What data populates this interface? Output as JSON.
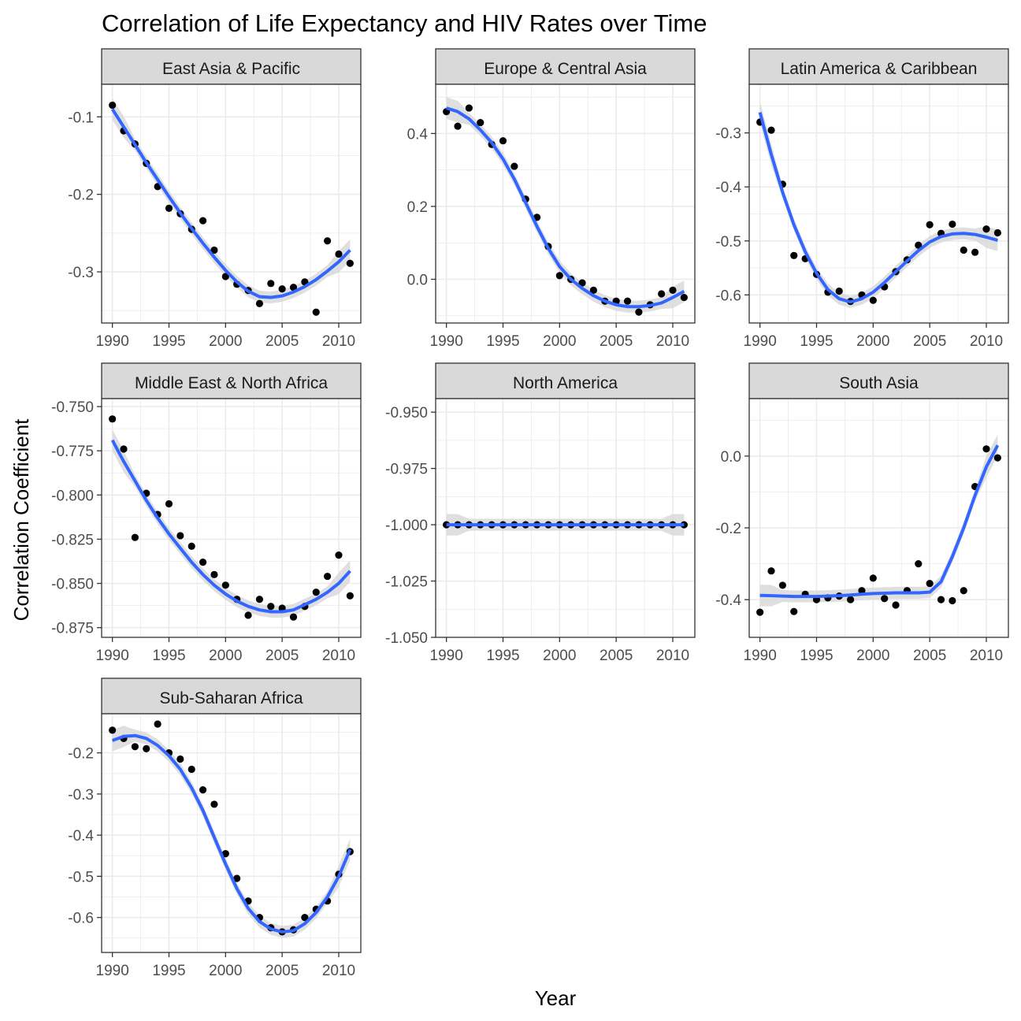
{
  "chart_data": {
    "type": "scatter",
    "title": "Correlation of Life Expectancy and HIV Rates over Time",
    "xlabel": "Year",
    "ylabel": "Correlation Coefficient",
    "x": [
      1990,
      1991,
      1992,
      1993,
      1994,
      1995,
      1996,
      1997,
      1998,
      1999,
      2000,
      2001,
      2002,
      2003,
      2004,
      2005,
      2006,
      2007,
      2008,
      2009,
      2010,
      2011
    ],
    "xlim": [
      1989.05,
      2011.95
    ],
    "xticks": [
      "1990",
      "1995",
      "2000",
      "2005",
      "2010"
    ],
    "grid": true,
    "colors": {
      "points": "#000000",
      "smooth": "#3366ff",
      "ribbon": "#d9d9d9",
      "strip_fill": "#d9d9d9",
      "panel_border": "#333333",
      "grid": "#ebebeb"
    },
    "panels": [
      {
        "name": "East Asia & Pacific",
        "ylim": [
          -0.366,
          -0.058
        ],
        "yticks": [
          -0.1,
          -0.2,
          -0.3
        ],
        "ytick_labels": [
          "-0.1",
          "-0.2",
          "-0.3"
        ],
        "values": [
          -0.085,
          -0.118,
          -0.135,
          -0.16,
          -0.19,
          -0.218,
          -0.225,
          -0.245,
          -0.234,
          -0.272,
          -0.306,
          -0.316,
          -0.324,
          -0.341,
          -0.315,
          -0.322,
          -0.32,
          -0.313,
          -0.352,
          -0.26,
          -0.277,
          -0.289
        ],
        "smooth": [
          -0.09,
          -0.113,
          -0.136,
          -0.159,
          -0.181,
          -0.203,
          -0.224,
          -0.244,
          -0.263,
          -0.281,
          -0.298,
          -0.313,
          -0.325,
          -0.332,
          -0.333,
          -0.331,
          -0.326,
          -0.319,
          -0.31,
          -0.299,
          -0.287,
          -0.272
        ]
      },
      {
        "name": "Europe & Central Asia",
        "ylim": [
          -0.12,
          0.535
        ],
        "yticks": [
          0.4,
          0.2,
          0.0
        ],
        "ytick_labels": [
          "0.4",
          "0.2",
          "0.0"
        ],
        "values": [
          0.46,
          0.42,
          0.47,
          0.43,
          0.37,
          0.38,
          0.31,
          0.22,
          0.17,
          0.09,
          0.01,
          0.0,
          -0.01,
          -0.03,
          -0.06,
          -0.06,
          -0.06,
          -0.09,
          -0.07,
          -0.04,
          -0.03,
          -0.05
        ],
        "smooth": [
          0.47,
          0.46,
          0.44,
          0.41,
          0.375,
          0.33,
          0.275,
          0.21,
          0.145,
          0.085,
          0.035,
          0.0,
          -0.025,
          -0.045,
          -0.06,
          -0.07,
          -0.075,
          -0.075,
          -0.072,
          -0.065,
          -0.05,
          -0.033
        ]
      },
      {
        "name": "Latin America & Caribbean",
        "ylim": [
          -0.652,
          -0.21
        ],
        "yticks": [
          -0.3,
          -0.4,
          -0.5,
          -0.6
        ],
        "ytick_labels": [
          "-0.3",
          "-0.4",
          "-0.5",
          "-0.6"
        ],
        "values": [
          -0.28,
          -0.295,
          -0.395,
          -0.527,
          -0.533,
          -0.562,
          -0.595,
          -0.593,
          -0.612,
          -0.6,
          -0.61,
          -0.585,
          -0.557,
          -0.535,
          -0.508,
          -0.47,
          -0.486,
          -0.469,
          -0.517,
          -0.521,
          -0.478,
          -0.485
        ],
        "smooth": [
          -0.262,
          -0.34,
          -0.41,
          -0.47,
          -0.52,
          -0.56,
          -0.59,
          -0.607,
          -0.613,
          -0.607,
          -0.595,
          -0.577,
          -0.557,
          -0.537,
          -0.518,
          -0.502,
          -0.492,
          -0.487,
          -0.486,
          -0.488,
          -0.493,
          -0.499
        ]
      },
      {
        "name": "Middle East & North Africa",
        "ylim": [
          -0.8805,
          -0.7455
        ],
        "yticks": [
          -0.75,
          -0.775,
          -0.8,
          -0.825,
          -0.85,
          -0.875
        ],
        "ytick_labels": [
          "-0.750",
          "-0.775",
          "-0.800",
          "-0.825",
          "-0.850",
          "-0.875"
        ],
        "values": [
          -0.757,
          -0.774,
          -0.824,
          -0.799,
          -0.811,
          -0.805,
          -0.823,
          -0.829,
          -0.838,
          -0.845,
          -0.851,
          -0.859,
          -0.868,
          -0.859,
          -0.863,
          -0.864,
          -0.869,
          -0.863,
          -0.855,
          -0.846,
          -0.834,
          -0.857
        ],
        "smooth": [
          -0.769,
          -0.781,
          -0.792,
          -0.803,
          -0.813,
          -0.822,
          -0.83,
          -0.838,
          -0.845,
          -0.851,
          -0.856,
          -0.86,
          -0.863,
          -0.865,
          -0.866,
          -0.866,
          -0.865,
          -0.862,
          -0.859,
          -0.855,
          -0.85,
          -0.843
        ]
      },
      {
        "name": "North America",
        "ylim": [
          -1.05,
          -0.944
        ],
        "yticks": [
          -0.95,
          -0.975,
          -1.0,
          -1.025,
          -1.05
        ],
        "ytick_labels": [
          "-0.950",
          "-0.975",
          "-1.000",
          "-1.025",
          "-1.050"
        ],
        "values": [
          -1.0,
          -1.0,
          -1.0,
          -1.0,
          -1.0,
          -1.0,
          -1.0,
          -1.0,
          -1.0,
          -1.0,
          -1.0,
          -1.0,
          -1.0,
          -1.0,
          -1.0,
          -1.0,
          -1.0,
          -1.0,
          -1.0,
          -1.0,
          -1.0,
          -1.0
        ],
        "smooth": [
          -1.0,
          -1.0,
          -1.0,
          -1.0,
          -1.0,
          -1.0,
          -1.0,
          -1.0,
          -1.0,
          -1.0,
          -1.0,
          -1.0,
          -1.0,
          -1.0,
          -1.0,
          -1.0,
          -1.0,
          -1.0,
          -1.0,
          -1.0,
          -1.0,
          -1.0
        ]
      },
      {
        "name": "South Asia",
        "ylim": [
          -0.505,
          0.16
        ],
        "yticks": [
          0.0,
          -0.2,
          -0.4
        ],
        "ytick_labels": [
          "0.0",
          "-0.2",
          "-0.4"
        ],
        "values": [
          -0.435,
          -0.32,
          -0.36,
          -0.433,
          -0.385,
          -0.4,
          -0.395,
          -0.39,
          -0.4,
          -0.375,
          -0.34,
          -0.397,
          -0.415,
          -0.375,
          -0.3,
          -0.355,
          -0.4,
          -0.403,
          -0.375,
          -0.085,
          0.02,
          -0.005
        ],
        "smooth": [
          -0.388,
          -0.389,
          -0.39,
          -0.391,
          -0.391,
          -0.391,
          -0.39,
          -0.389,
          -0.387,
          -0.385,
          -0.383,
          -0.382,
          -0.381,
          -0.381,
          -0.381,
          -0.379,
          -0.35,
          -0.28,
          -0.2,
          -0.11,
          -0.03,
          0.03
        ]
      },
      {
        "name": "Sub-Saharan Africa",
        "ylim": [
          -0.685,
          -0.105
        ],
        "yticks": [
          -0.2,
          -0.3,
          -0.4,
          -0.5,
          -0.6
        ],
        "ytick_labels": [
          "-0.2",
          "-0.3",
          "-0.4",
          "-0.5",
          "-0.6"
        ],
        "values": [
          -0.145,
          -0.165,
          -0.185,
          -0.19,
          -0.13,
          -0.2,
          -0.215,
          -0.24,
          -0.29,
          -0.325,
          -0.445,
          -0.505,
          -0.56,
          -0.6,
          -0.625,
          -0.635,
          -0.63,
          -0.6,
          -0.58,
          -0.56,
          -0.495,
          -0.44
        ],
        "smooth": [
          -0.17,
          -0.16,
          -0.158,
          -0.165,
          -0.182,
          -0.207,
          -0.24,
          -0.285,
          -0.34,
          -0.405,
          -0.47,
          -0.53,
          -0.578,
          -0.61,
          -0.628,
          -0.635,
          -0.632,
          -0.615,
          -0.588,
          -0.55,
          -0.5,
          -0.435
        ]
      }
    ]
  }
}
